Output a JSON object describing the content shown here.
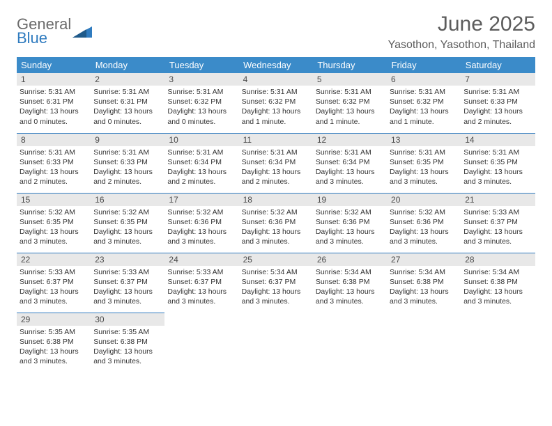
{
  "logo": {
    "word1": "General",
    "word2": "Blue"
  },
  "title": "June 2025",
  "location": "Yasothon, Yasothon, Thailand",
  "colors": {
    "header_bg": "#3b8bc9",
    "header_text": "#ffffff",
    "daynum_bg": "#e8e8e8",
    "border": "#2f7bbf",
    "title_color": "#5c5c5c",
    "logo_gray": "#6b6b6b",
    "logo_blue": "#2f7bbf"
  },
  "weekdays": [
    "Sunday",
    "Monday",
    "Tuesday",
    "Wednesday",
    "Thursday",
    "Friday",
    "Saturday"
  ],
  "days": [
    {
      "n": "1",
      "sunrise": "5:31 AM",
      "sunset": "6:31 PM",
      "dl": "13 hours and 0 minutes."
    },
    {
      "n": "2",
      "sunrise": "5:31 AM",
      "sunset": "6:31 PM",
      "dl": "13 hours and 0 minutes."
    },
    {
      "n": "3",
      "sunrise": "5:31 AM",
      "sunset": "6:32 PM",
      "dl": "13 hours and 0 minutes."
    },
    {
      "n": "4",
      "sunrise": "5:31 AM",
      "sunset": "6:32 PM",
      "dl": "13 hours and 1 minute."
    },
    {
      "n": "5",
      "sunrise": "5:31 AM",
      "sunset": "6:32 PM",
      "dl": "13 hours and 1 minute."
    },
    {
      "n": "6",
      "sunrise": "5:31 AM",
      "sunset": "6:32 PM",
      "dl": "13 hours and 1 minute."
    },
    {
      "n": "7",
      "sunrise": "5:31 AM",
      "sunset": "6:33 PM",
      "dl": "13 hours and 2 minutes."
    },
    {
      "n": "8",
      "sunrise": "5:31 AM",
      "sunset": "6:33 PM",
      "dl": "13 hours and 2 minutes."
    },
    {
      "n": "9",
      "sunrise": "5:31 AM",
      "sunset": "6:33 PM",
      "dl": "13 hours and 2 minutes."
    },
    {
      "n": "10",
      "sunrise": "5:31 AM",
      "sunset": "6:34 PM",
      "dl": "13 hours and 2 minutes."
    },
    {
      "n": "11",
      "sunrise": "5:31 AM",
      "sunset": "6:34 PM",
      "dl": "13 hours and 2 minutes."
    },
    {
      "n": "12",
      "sunrise": "5:31 AM",
      "sunset": "6:34 PM",
      "dl": "13 hours and 3 minutes."
    },
    {
      "n": "13",
      "sunrise": "5:31 AM",
      "sunset": "6:35 PM",
      "dl": "13 hours and 3 minutes."
    },
    {
      "n": "14",
      "sunrise": "5:31 AM",
      "sunset": "6:35 PM",
      "dl": "13 hours and 3 minutes."
    },
    {
      "n": "15",
      "sunrise": "5:32 AM",
      "sunset": "6:35 PM",
      "dl": "13 hours and 3 minutes."
    },
    {
      "n": "16",
      "sunrise": "5:32 AM",
      "sunset": "6:35 PM",
      "dl": "13 hours and 3 minutes."
    },
    {
      "n": "17",
      "sunrise": "5:32 AM",
      "sunset": "6:36 PM",
      "dl": "13 hours and 3 minutes."
    },
    {
      "n": "18",
      "sunrise": "5:32 AM",
      "sunset": "6:36 PM",
      "dl": "13 hours and 3 minutes."
    },
    {
      "n": "19",
      "sunrise": "5:32 AM",
      "sunset": "6:36 PM",
      "dl": "13 hours and 3 minutes."
    },
    {
      "n": "20",
      "sunrise": "5:32 AM",
      "sunset": "6:36 PM",
      "dl": "13 hours and 3 minutes."
    },
    {
      "n": "21",
      "sunrise": "5:33 AM",
      "sunset": "6:37 PM",
      "dl": "13 hours and 3 minutes."
    },
    {
      "n": "22",
      "sunrise": "5:33 AM",
      "sunset": "6:37 PM",
      "dl": "13 hours and 3 minutes."
    },
    {
      "n": "23",
      "sunrise": "5:33 AM",
      "sunset": "6:37 PM",
      "dl": "13 hours and 3 minutes."
    },
    {
      "n": "24",
      "sunrise": "5:33 AM",
      "sunset": "6:37 PM",
      "dl": "13 hours and 3 minutes."
    },
    {
      "n": "25",
      "sunrise": "5:34 AM",
      "sunset": "6:37 PM",
      "dl": "13 hours and 3 minutes."
    },
    {
      "n": "26",
      "sunrise": "5:34 AM",
      "sunset": "6:38 PM",
      "dl": "13 hours and 3 minutes."
    },
    {
      "n": "27",
      "sunrise": "5:34 AM",
      "sunset": "6:38 PM",
      "dl": "13 hours and 3 minutes."
    },
    {
      "n": "28",
      "sunrise": "5:34 AM",
      "sunset": "6:38 PM",
      "dl": "13 hours and 3 minutes."
    },
    {
      "n": "29",
      "sunrise": "5:35 AM",
      "sunset": "6:38 PM",
      "dl": "13 hours and 3 minutes."
    },
    {
      "n": "30",
      "sunrise": "5:35 AM",
      "sunset": "6:38 PM",
      "dl": "13 hours and 3 minutes."
    }
  ],
  "labels": {
    "sunrise": "Sunrise:",
    "sunset": "Sunset:",
    "daylight": "Daylight:"
  },
  "layout": {
    "first_weekday_index": 0,
    "columns": 7,
    "rows": 5
  }
}
